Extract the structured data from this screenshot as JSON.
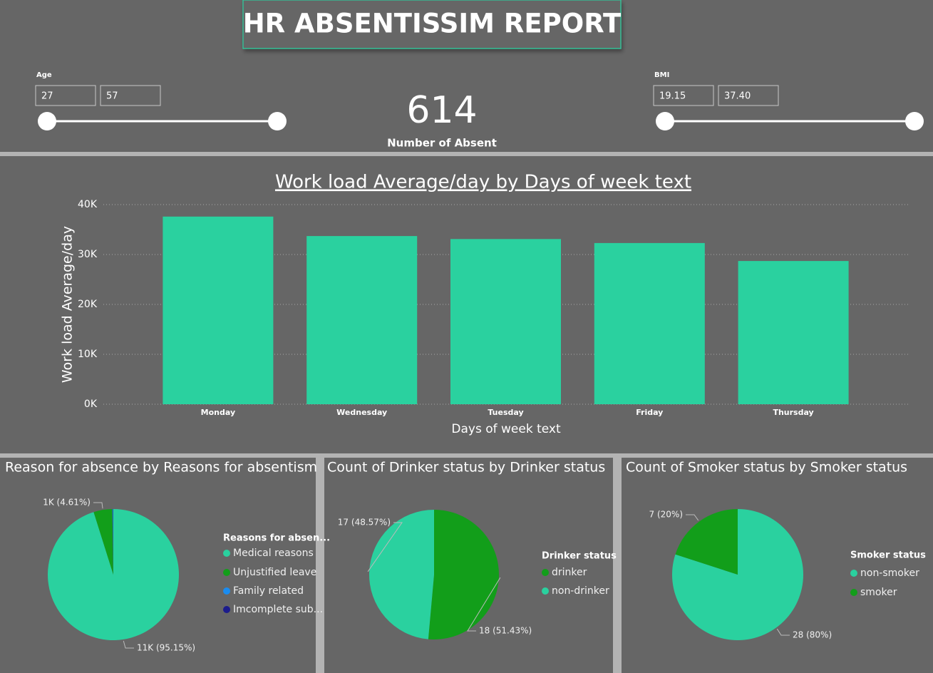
{
  "header": {
    "title": "HR ABSENTISSIM REPORT"
  },
  "slicers": [
    {
      "label": "Age",
      "min": 27,
      "max": 57
    },
    {
      "label": "BMI",
      "min": 19.15,
      "max": {
        "value": 37.4,
        "label": "37.40"
      }
    }
  ],
  "kpi": {
    "value": 614,
    "label": "Number of Absent"
  },
  "chart_data": [
    {
      "type": "bar",
      "title": "Work load Average/day by Days of week text",
      "x_label": "Days of week text",
      "y_label": "Work load Average/day",
      "categories": [
        "Monday",
        "Wednesday",
        "Tuesday",
        "Friday",
        "Thursday"
      ],
      "values": [
        37600,
        33700,
        33100,
        32300,
        28700
      ],
      "color": "#2ad19f",
      "ylim": [
        0,
        40000
      ],
      "yticks": [
        {
          "value": 0,
          "label": "0K"
        },
        {
          "value": 10000,
          "label": "10K"
        },
        {
          "value": 20000,
          "label": "20K"
        },
        {
          "value": 30000,
          "label": "30K"
        },
        {
          "value": 40000,
          "label": "40K"
        }
      ],
      "grid": true
    },
    {
      "type": "pie",
      "title": "Reason for absence by Reasons for absentism",
      "legend_title": "Reasons for absen...",
      "categories": [
        "Medical reasons",
        "Unjustified leave",
        "Family related",
        "Imcomplete sub..."
      ],
      "values": [
        95.15,
        4.61,
        0.16,
        0.08
      ],
      "value_labels": [
        "11K (95.15%)",
        "1K (4.61%)",
        null,
        null
      ],
      "colors": [
        "#2ad19f",
        "#129e1a",
        "#1a8cf0",
        "#1c1c8c"
      ]
    },
    {
      "type": "pie",
      "title": "Count of Drinker status by Drinker status",
      "legend_title": "Drinker status",
      "categories": [
        "drinker",
        "non-drinker"
      ],
      "values": [
        18,
        17
      ],
      "value_labels": [
        "18 (51.43%)",
        "17 (48.57%)"
      ],
      "colors": [
        "#129e1a",
        "#2ad19f"
      ]
    },
    {
      "type": "pie",
      "title": "Count of Smoker status by Smoker status",
      "legend_title": "Smoker status",
      "categories": [
        "non-smoker",
        "smoker"
      ],
      "values": [
        28,
        7
      ],
      "value_labels": [
        "28 (80%)",
        "7 (20%)"
      ],
      "colors": [
        "#2ad19f",
        "#129e1a"
      ]
    }
  ]
}
